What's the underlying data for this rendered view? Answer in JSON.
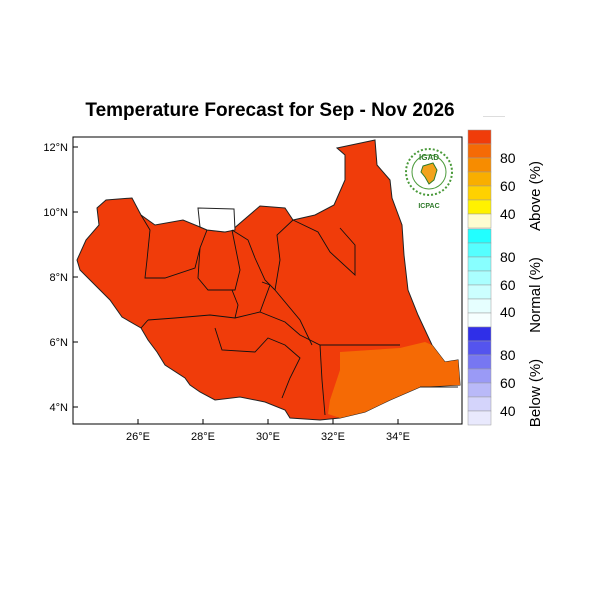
{
  "title": "Temperature Forecast for Sep - Nov 2026",
  "axes": {
    "lat_ticks": [
      "12°N",
      "10°N",
      "8°N",
      "6°N",
      "4°N"
    ],
    "lon_ticks": [
      "26°E",
      "28°E",
      "30°E",
      "32°E",
      "34°E"
    ]
  },
  "logo": {
    "top_text": "IGAD",
    "bottom_text": "ICPAC"
  },
  "colorbar": {
    "above": {
      "title": "Above (%)",
      "labels": [
        "80",
        "60",
        "40"
      ],
      "colors": [
        "#f03c0a",
        "#f56a05",
        "#f78c00",
        "#f9ae00",
        "#ffd100",
        "#fff200",
        "#fffcd0"
      ]
    },
    "normal": {
      "title": "Normal (%)",
      "labels": [
        "80",
        "60",
        "40"
      ],
      "colors": [
        "#22ffff",
        "#55ffff",
        "#88ffff",
        "#aaffff",
        "#ccffff",
        "#e6ffff",
        "#f6ffff"
      ]
    },
    "below": {
      "title": "Below (%)",
      "labels": [
        "80",
        "60",
        "40"
      ],
      "colors": [
        "#2f2fe8",
        "#5454ee",
        "#7777f2",
        "#9a9af6",
        "#b9b9f8",
        "#d4d4fb",
        "#e9e9fd"
      ]
    }
  },
  "map_colors": {
    "main": "#f03c0a",
    "southeast": "#f56a05",
    "unshaded": "#ffffff"
  }
}
